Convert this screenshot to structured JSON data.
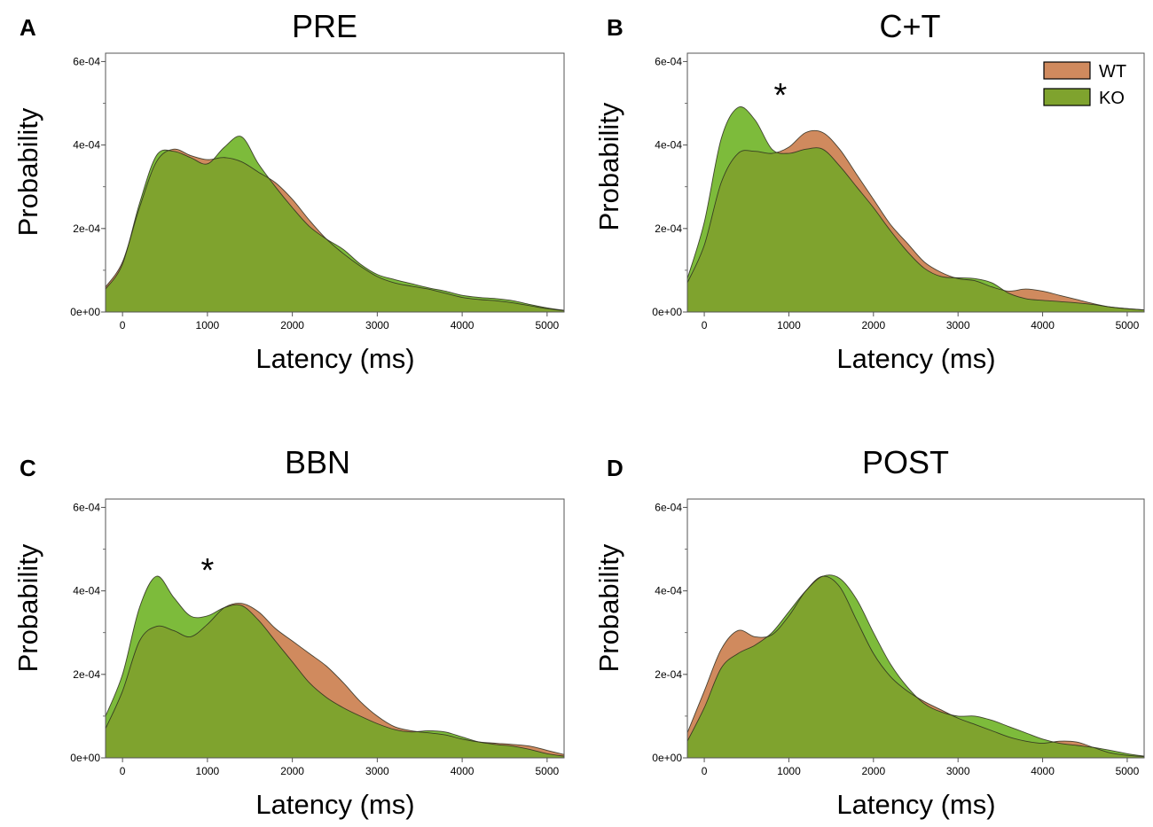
{
  "chart_data": [
    {
      "panel": "A",
      "title": "PRE",
      "type": "area",
      "xlabel": "Latency (ms)",
      "ylabel": "Probability",
      "xlim": [
        -200,
        5200
      ],
      "ylim": [
        0,
        0.00062
      ],
      "xticks": [
        0,
        1000,
        2000,
        3000,
        4000,
        5000
      ],
      "xtick_labels": [
        "0",
        "1000",
        "2000",
        "3000",
        "4000",
        "5000"
      ],
      "yticks": [
        0,
        0.0002,
        0.0004,
        0.0006
      ],
      "ytick_labels": [
        "0e+00",
        "2e-04",
        "4e-04",
        "6e-04"
      ],
      "annotation": "",
      "annotation_x": null,
      "annotation_y": null,
      "series": [
        {
          "name": "WT",
          "x": [
            -200,
            0,
            200,
            400,
            600,
            800,
            1000,
            1200,
            1400,
            1600,
            1800,
            2000,
            2200,
            2400,
            2600,
            2800,
            3000,
            3200,
            3400,
            3600,
            3800,
            4000,
            4200,
            4400,
            4600,
            4800,
            5000,
            5200
          ],
          "y": [
            6e-05,
            0.00012,
            0.00025,
            0.00036,
            0.00039,
            0.000375,
            0.000365,
            0.00037,
            0.00036,
            0.000335,
            0.00031,
            0.00027,
            0.00022,
            0.000175,
            0.00014,
            0.00011,
            8.5e-05,
            7e-05,
            6.2e-05,
            5.5e-05,
            4.5e-05,
            3.5e-05,
            3e-05,
            2.7e-05,
            2.2e-05,
            1.5e-05,
            8e-06,
            3e-06
          ]
        },
        {
          "name": "KO",
          "x": [
            -200,
            0,
            200,
            400,
            600,
            800,
            1000,
            1200,
            1400,
            1600,
            1800,
            2000,
            2200,
            2400,
            2600,
            2800,
            3000,
            3200,
            3400,
            3600,
            3800,
            4000,
            4200,
            4400,
            4600,
            4800,
            5000,
            5200
          ],
          "y": [
            5.5e-05,
            0.000115,
            0.00026,
            0.000375,
            0.000385,
            0.00037,
            0.000355,
            0.000395,
            0.00042,
            0.000355,
            0.0003,
            0.00025,
            0.000205,
            0.000175,
            0.00015,
            0.000115,
            9e-05,
            7.8e-05,
            6.8e-05,
            5.8e-05,
            5e-05,
            4e-05,
            3.5e-05,
            3.2e-05,
            2.7e-05,
            1.8e-05,
            1e-05,
            4e-06
          ]
        }
      ]
    },
    {
      "panel": "B",
      "title": "C+T",
      "type": "area",
      "xlabel": "Latency (ms)",
      "ylabel": "Probability",
      "xlim": [
        -200,
        5200
      ],
      "ylim": [
        0,
        0.00062
      ],
      "xticks": [
        0,
        1000,
        2000,
        3000,
        4000,
        5000
      ],
      "xtick_labels": [
        "0",
        "1000",
        "2000",
        "3000",
        "4000",
        "5000"
      ],
      "yticks": [
        0,
        0.0002,
        0.0004,
        0.0006
      ],
      "ytick_labels": [
        "0e+00",
        "2e-04",
        "4e-04",
        "6e-04"
      ],
      "annotation": "*",
      "annotation_x": 900,
      "annotation_y": 0.000535,
      "series": [
        {
          "name": "WT",
          "x": [
            -200,
            0,
            200,
            400,
            600,
            800,
            1000,
            1200,
            1400,
            1600,
            1800,
            2000,
            2200,
            2400,
            2600,
            2800,
            3000,
            3200,
            3400,
            3600,
            3800,
            4000,
            4200,
            4400,
            4600,
            4800,
            5000,
            5200
          ],
          "y": [
            7e-05,
            0.00016,
            0.00031,
            0.00038,
            0.000385,
            0.00038,
            0.000395,
            0.00043,
            0.00043,
            0.00039,
            0.00033,
            0.00027,
            0.00021,
            0.000165,
            0.00012,
            9.5e-05,
            8e-05,
            7.5e-05,
            6e-05,
            5e-05,
            5.5e-05,
            5e-05,
            4e-05,
            3e-05,
            2e-05,
            1.2e-05,
            8e-06,
            5e-06
          ]
        },
        {
          "name": "KO",
          "x": [
            -200,
            0,
            200,
            400,
            600,
            800,
            1000,
            1200,
            1400,
            1600,
            1800,
            2000,
            2200,
            2400,
            2600,
            2800,
            3000,
            3200,
            3400,
            3600,
            3800,
            4000,
            4200,
            4400,
            4600,
            4800,
            5000,
            5200
          ],
          "y": [
            8e-05,
            0.000215,
            0.000415,
            0.00049,
            0.00046,
            0.00039,
            0.00038,
            0.00039,
            0.00039,
            0.00035,
            0.0003,
            0.00025,
            0.000195,
            0.000145,
            0.000105,
            8.5e-05,
            8.2e-05,
            8e-05,
            7e-05,
            4.5e-05,
            3.2e-05,
            2.8e-05,
            2.5e-05,
            2.2e-05,
            1.8e-05,
            1.2e-05,
            8e-06,
            5e-06
          ]
        }
      ]
    },
    {
      "panel": "C",
      "title": "BBN",
      "type": "area",
      "xlabel": "Latency (ms)",
      "ylabel": "Probability",
      "xlim": [
        -200,
        5200
      ],
      "ylim": [
        0,
        0.00062
      ],
      "xticks": [
        0,
        1000,
        2000,
        3000,
        4000,
        5000
      ],
      "xtick_labels": [
        "0",
        "1000",
        "2000",
        "3000",
        "4000",
        "5000"
      ],
      "yticks": [
        0,
        0.0002,
        0.0004,
        0.0006
      ],
      "ytick_labels": [
        "0e+00",
        "2e-04",
        "4e-04",
        "6e-04"
      ],
      "annotation": "*",
      "annotation_x": 1000,
      "annotation_y": 0.000465,
      "series": [
        {
          "name": "WT",
          "x": [
            -200,
            0,
            200,
            400,
            600,
            800,
            1000,
            1200,
            1400,
            1600,
            1800,
            2000,
            2200,
            2400,
            2600,
            2800,
            3000,
            3200,
            3400,
            3600,
            3800,
            4000,
            4200,
            4400,
            4600,
            4800,
            5000,
            5200
          ],
          "y": [
            7e-05,
            0.00016,
            0.00028,
            0.000315,
            0.000305,
            0.00029,
            0.00032,
            0.00036,
            0.00037,
            0.00035,
            0.00031,
            0.00028,
            0.00025,
            0.00022,
            0.00018,
            0.000135,
            0.0001,
            7.5e-05,
            6.5e-05,
            6e-05,
            5.5e-05,
            4.5e-05,
            3.8e-05,
            3.5e-05,
            3.2e-05,
            2.8e-05,
            1.8e-05,
            8e-06
          ]
        },
        {
          "name": "KO",
          "x": [
            -200,
            0,
            200,
            400,
            600,
            800,
            1000,
            1200,
            1400,
            1600,
            1800,
            2000,
            2200,
            2400,
            2600,
            2800,
            3000,
            3200,
            3400,
            3600,
            3800,
            4000,
            4200,
            4400,
            4600,
            4800,
            5000,
            5200
          ],
          "y": [
            0.0001,
            0.0002,
            0.00036,
            0.000435,
            0.000385,
            0.00034,
            0.00034,
            0.00036,
            0.000365,
            0.00033,
            0.00028,
            0.00023,
            0.00018,
            0.000145,
            0.00012,
            0.0001,
            8.2e-05,
            6.8e-05,
            6.2e-05,
            6.5e-05,
            6.2e-05,
            5e-05,
            3.8e-05,
            3.2e-05,
            2.8e-05,
            2e-05,
            1e-05,
            4e-06
          ]
        }
      ]
    },
    {
      "panel": "D",
      "title": "POST",
      "type": "area",
      "xlabel": "Latency (ms)",
      "ylabel": "Probability",
      "xlim": [
        -200,
        5200
      ],
      "ylim": [
        0,
        0.00062
      ],
      "xticks": [
        0,
        1000,
        2000,
        3000,
        4000,
        5000
      ],
      "xtick_labels": [
        "0",
        "1000",
        "2000",
        "3000",
        "4000",
        "5000"
      ],
      "yticks": [
        0,
        0.0002,
        0.0004,
        0.0006
      ],
      "ytick_labels": [
        "0e+00",
        "2e-04",
        "4e-04",
        "6e-04"
      ],
      "annotation": "",
      "annotation_x": null,
      "annotation_y": null,
      "series": [
        {
          "name": "WT",
          "x": [
            -200,
            0,
            200,
            400,
            600,
            800,
            1000,
            1200,
            1400,
            1600,
            1800,
            2000,
            2200,
            2400,
            2600,
            2800,
            3000,
            3200,
            3400,
            3600,
            3800,
            4000,
            4200,
            4400,
            4600,
            4800,
            5000,
            5200
          ],
          "y": [
            6e-05,
            0.00016,
            0.00026,
            0.000305,
            0.00029,
            0.000295,
            0.00034,
            0.0004,
            0.000435,
            0.00041,
            0.00033,
            0.00025,
            0.000195,
            0.00016,
            0.000135,
            0.000115,
            9.5e-05,
            8e-05,
            6.5e-05,
            5e-05,
            4e-05,
            3.5e-05,
            4e-05,
            3.8e-05,
            2.5e-05,
            1.2e-05,
            6e-06,
            3e-06
          ]
        },
        {
          "name": "KO",
          "x": [
            -200,
            0,
            200,
            400,
            600,
            800,
            1000,
            1200,
            1400,
            1600,
            1800,
            2000,
            2200,
            2400,
            2600,
            2800,
            3000,
            3200,
            3400,
            3600,
            3800,
            4000,
            4200,
            4400,
            4600,
            4800,
            5000,
            5200
          ],
          "y": [
            4e-05,
            0.00012,
            0.000215,
            0.00025,
            0.00027,
            0.0003,
            0.00035,
            0.0004,
            0.000435,
            0.00043,
            0.00038,
            0.0003,
            0.000225,
            0.00017,
            0.00013,
            0.00011,
            0.0001,
            0.0001,
            9e-05,
            7.5e-05,
            6e-05,
            4.5e-05,
            3.5e-05,
            3e-05,
            2.5e-05,
            1.8e-05,
            1e-05,
            4e-06
          ]
        }
      ]
    }
  ],
  "legend": {
    "entries": [
      {
        "label": "WT",
        "color": "#d08a5e"
      },
      {
        "label": "KO",
        "color": "#7dbb3b"
      }
    ],
    "placement": "top-right of panel B"
  },
  "colors": {
    "wt_fill": "#d08a5e",
    "ko_fill": "#7dbb3b",
    "overlap_fill": "#7fa32e",
    "outline": "#2b2b1f",
    "axis": "#555555",
    "background": "#ffffff"
  }
}
